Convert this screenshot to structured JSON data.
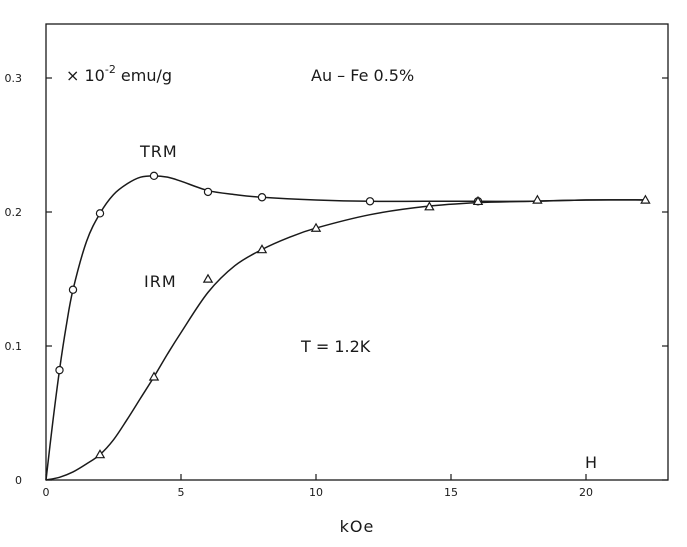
{
  "chart_data": {
    "type": "scatter",
    "title": "",
    "xlabel": "kOe",
    "ylabel": "",
    "xlim": [
      0,
      23.5
    ],
    "ylim": [
      0,
      0.34
    ],
    "x_ticks": [
      0,
      5,
      10,
      15,
      20
    ],
    "x_tick_labels": [
      "0",
      "5",
      "10",
      "15",
      "20"
    ],
    "y_ticks": [
      0,
      0.1,
      0.2,
      0.3
    ],
    "y_tick_labels": [
      "0",
      "0.1",
      "0.2",
      "0.3"
    ],
    "grid": false,
    "series": [
      {
        "name": "TRM",
        "marker": "circle",
        "x": [
          0.5,
          1.0,
          2.0,
          4.0,
          6.0,
          8.0,
          12.0,
          16.0
        ],
        "y": [
          0.082,
          0.142,
          0.199,
          0.227,
          0.215,
          0.211,
          0.208,
          0.208
        ],
        "curve_x": [
          0,
          0.25,
          0.5,
          0.75,
          1.0,
          1.5,
          2.0,
          2.5,
          3.0,
          3.5,
          4.0,
          4.5,
          5.0,
          6.0,
          7.0,
          8.0,
          10.0,
          12.0,
          14.0,
          16.0,
          18.0,
          20.0,
          22.3
        ],
        "curve_y": [
          0,
          0.043,
          0.082,
          0.115,
          0.142,
          0.178,
          0.199,
          0.213,
          0.221,
          0.226,
          0.227,
          0.226,
          0.223,
          0.216,
          0.213,
          0.211,
          0.209,
          0.208,
          0.208,
          0.208,
          0.208,
          0.209,
          0.209
        ]
      },
      {
        "name": "IRM",
        "marker": "triangle",
        "x": [
          2.0,
          4.0,
          6.0,
          8.0,
          10.0,
          14.2,
          16.0,
          18.2,
          22.2
        ],
        "y": [
          0.019,
          0.077,
          0.15,
          0.172,
          0.188,
          0.204,
          0.208,
          0.209,
          0.209
        ],
        "curve_x": [
          0,
          0.5,
          1.0,
          1.5,
          2.0,
          2.5,
          3.0,
          3.5,
          4.0,
          4.5,
          5.0,
          6.0,
          7.0,
          8.0,
          9.0,
          10.0,
          12.0,
          14.0,
          16.0,
          18.0,
          20.0,
          22.3
        ],
        "curve_y": [
          0,
          0.002,
          0.006,
          0.012,
          0.019,
          0.03,
          0.045,
          0.061,
          0.077,
          0.094,
          0.11,
          0.14,
          0.16,
          0.172,
          0.181,
          0.188,
          0.198,
          0.204,
          0.207,
          0.208,
          0.209,
          0.209
        ]
      }
    ],
    "annotations": {
      "unit": "× 10",
      "unit_exp": "-2",
      "unit_rest": " emu/g",
      "sample": "Au – Fe 0.5%",
      "temperature": "T = 1.2K",
      "h_label": "H"
    },
    "colors": {
      "ink": "#1a1a1a",
      "background": "#ffffff"
    }
  }
}
